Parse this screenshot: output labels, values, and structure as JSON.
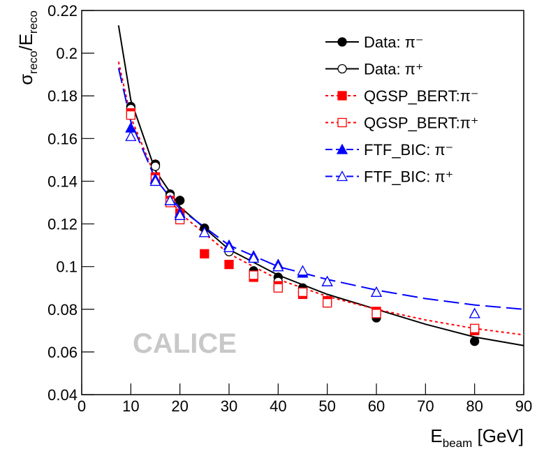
{
  "chart_data": {
    "type": "scatter",
    "y_label_parts": [
      "σ",
      "reco",
      "/E",
      "reco"
    ],
    "x_label_parts": [
      "E",
      "beam",
      " [GeV]"
    ],
    "annotation": "CALICE",
    "xlim": [
      0,
      90
    ],
    "xticks": [
      0,
      10,
      20,
      30,
      40,
      50,
      60,
      70,
      80,
      90
    ],
    "ylim": [
      0.04,
      0.22
    ],
    "yticks": [
      0.04,
      0.06,
      0.08,
      0.1,
      0.12,
      0.14,
      0.16,
      0.18,
      0.2,
      0.22
    ],
    "series": [
      {
        "name": "Data: π⁻",
        "color": "#000000",
        "marker": "circle",
        "filled": true,
        "line_style": "solid",
        "x": [
          10,
          15,
          18,
          20,
          25,
          35,
          40,
          45,
          50,
          60,
          80
        ],
        "values": [
          0.175,
          0.148,
          0.134,
          0.131,
          0.118,
          0.098,
          0.095,
          0.09,
          0.084,
          0.076,
          0.065
        ]
      },
      {
        "name": "Data: π⁺",
        "color": "#000000",
        "marker": "circle",
        "filled": false,
        "line_style": "solid",
        "x": [
          10,
          15,
          18,
          20,
          30,
          40,
          45,
          50
        ],
        "values": [
          0.174,
          0.147,
          0.133,
          0.125,
          0.107,
          0.093,
          0.088,
          0.083
        ]
      },
      {
        "name": "QGSP_BERT:π⁻",
        "color": "#ff0000",
        "marker": "square",
        "filled": true,
        "line_style": "dotted",
        "x": [
          10,
          15,
          18,
          20,
          25,
          30,
          35,
          40,
          45,
          50,
          60,
          80
        ],
        "values": [
          0.172,
          0.142,
          0.131,
          0.125,
          0.106,
          0.101,
          0.095,
          0.091,
          0.087,
          0.084,
          0.079,
          0.07
        ]
      },
      {
        "name": "QGSP_BERT:π⁺",
        "color": "#ff0000",
        "marker": "square",
        "filled": false,
        "line_style": "dotted",
        "x": [
          10,
          15,
          18,
          20,
          35,
          40,
          45,
          50,
          60,
          80
        ],
        "values": [
          0.171,
          0.141,
          0.13,
          0.122,
          0.096,
          0.09,
          0.088,
          0.083,
          0.078,
          0.071
        ]
      },
      {
        "name": "FTF_BIC: π⁻",
        "color": "#0000ff",
        "marker": "triangle",
        "filled": true,
        "line_style": "dashed",
        "x": [
          10,
          15,
          18,
          20,
          25,
          30,
          35,
          40,
          45,
          50,
          60,
          80
        ],
        "values": [
          0.165,
          0.141,
          0.131,
          0.125,
          0.116,
          0.11,
          0.105,
          0.101,
          0.097,
          0.093,
          0.088,
          0.078
        ]
      },
      {
        "name": "FTF_BIC: π⁺",
        "color": "#0000ff",
        "marker": "triangle",
        "filled": false,
        "line_style": "dashed",
        "x": [
          10,
          15,
          18,
          20,
          25,
          30,
          35,
          40,
          45,
          50,
          60,
          80
        ],
        "values": [
          0.161,
          0.14,
          0.131,
          0.124,
          0.116,
          0.109,
          0.104,
          0.1,
          0.098,
          0.093,
          0.088,
          0.078
        ]
      }
    ],
    "fits": [
      {
        "color": "#000000",
        "line_style": "solid",
        "x": [
          7.5,
          10,
          15,
          20,
          30,
          40,
          50,
          60,
          70,
          80,
          90
        ],
        "values": [
          0.213,
          0.178,
          0.145,
          0.128,
          0.108,
          0.096,
          0.087,
          0.08,
          0.073,
          0.067,
          0.063
        ]
      },
      {
        "color": "#ff0000",
        "line_style": "dotted",
        "x": [
          7.5,
          10,
          15,
          20,
          30,
          40,
          50,
          60,
          70,
          80,
          90
        ],
        "values": [
          0.196,
          0.17,
          0.142,
          0.125,
          0.106,
          0.094,
          0.086,
          0.08,
          0.075,
          0.071,
          0.068
        ]
      },
      {
        "color": "#0000ff",
        "line_style": "dashed",
        "x": [
          7.5,
          10,
          15,
          20,
          30,
          40,
          50,
          60,
          70,
          80,
          90
        ],
        "values": [
          0.193,
          0.168,
          0.141,
          0.127,
          0.11,
          0.1,
          0.094,
          0.089,
          0.085,
          0.082,
          0.08
        ]
      }
    ]
  }
}
